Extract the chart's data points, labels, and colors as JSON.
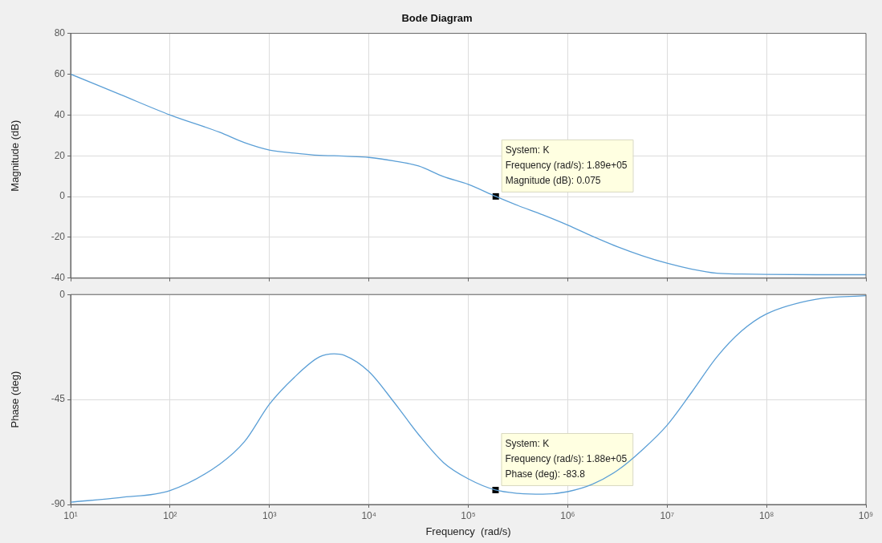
{
  "chart_data": [
    {
      "type": "line",
      "title": "Bode Diagram",
      "ylabel": "Magnitude (dB)",
      "log": "x",
      "grid": true,
      "marker": "none",
      "tick_labels": "y",
      "xlim": [
        10,
        1000000000
      ],
      "ylim": [
        -40,
        80
      ],
      "yticks": [
        -40,
        -20,
        0,
        20,
        40,
        60,
        80
      ],
      "xticks": [
        {
          "value": 10,
          "label": null
        },
        {
          "value": 100,
          "label": null
        },
        {
          "value": 1000,
          "label": null
        },
        {
          "value": 10000,
          "label": null
        },
        {
          "value": 100000,
          "label": null
        },
        {
          "value": 1000000,
          "label": null
        },
        {
          "value": 10000000,
          "label": null
        },
        {
          "value": 100000000,
          "label": null
        },
        {
          "value": 1000000000,
          "label": null
        }
      ],
      "x": [
        10,
        31.62,
        100,
        316.2,
        562.3,
        1000,
        1778,
        3162,
        4467,
        5623,
        10000,
        17783,
        31623,
        56234,
        100000,
        189000,
        316228,
        562341,
        1000000,
        1778279,
        3162278,
        5623413,
        10000000,
        17782794,
        31622777,
        56234133,
        100000000,
        316227766,
        1000000000
      ],
      "series": [
        {
          "color": "#5b9fd6",
          "values": [
            60,
            50,
            40,
            31.5,
            26.4,
            22.8,
            21.3,
            20.2,
            20,
            19.8,
            19.2,
            17.5,
            15,
            9.8,
            6,
            0.075,
            -4.4,
            -9,
            -14,
            -19.5,
            -24.6,
            -29,
            -32.7,
            -35.6,
            -37.6,
            -38,
            -38.2,
            -38.3,
            -38.3
          ]
        }
      ],
      "annotations": [
        {
          "text": "System: K\nFrequency (rad/s): 1.89e+05\nMagnitude (dB): 0.075",
          "x": 189000,
          "y": 0.075
        }
      ]
    },
    {
      "type": "line",
      "xlabel": "Frequency  (rad/s)",
      "ylabel": "Phase (deg)",
      "log": "x",
      "grid": true,
      "marker": "none",
      "xlim": [
        10,
        1000000000
      ],
      "ylim": [
        -90,
        0
      ],
      "yticks": [
        -90,
        -45,
        0
      ],
      "xticks": [
        {
          "value": 10,
          "label": "10¹"
        },
        {
          "value": 100,
          "label": "10²"
        },
        {
          "value": 1000,
          "label": "10³"
        },
        {
          "value": 10000,
          "label": "10⁴"
        },
        {
          "value": 100000,
          "label": "10⁵"
        },
        {
          "value": 1000000,
          "label": "10⁶"
        },
        {
          "value": 10000000,
          "label": "10⁷"
        },
        {
          "value": 100000000,
          "label": "10⁸"
        },
        {
          "value": 1000000000,
          "label": "10⁹"
        }
      ],
      "x": [
        10,
        31.62,
        100,
        316.2,
        562.3,
        1000,
        1778,
        3162,
        4467,
        5623,
        10000,
        17783,
        31623,
        56234,
        100000,
        188000,
        316228,
        562341,
        1000000,
        1778279,
        3162278,
        5623413,
        10000000,
        17782794,
        31622777,
        56234133,
        100000000,
        316227766,
        1000000000
      ],
      "series": [
        {
          "color": "#5b9fd6",
          "values": [
            -89,
            -87,
            -84,
            -72.7,
            -63,
            -47,
            -35.5,
            -26.8,
            -25.4,
            -26,
            -33,
            -46,
            -60,
            -72,
            -79,
            -83.8,
            -85.2,
            -85.6,
            -84.5,
            -81.3,
            -75.4,
            -66.6,
            -56,
            -41.7,
            -26.8,
            -15.6,
            -8.3,
            -2,
            -0.5
          ]
        }
      ],
      "annotations": [
        {
          "text": "System: K\nFrequency (rad/s): 1.88e+05\nPhase (deg): -83.8",
          "x": 188000,
          "y": -83.8
        }
      ]
    }
  ]
}
